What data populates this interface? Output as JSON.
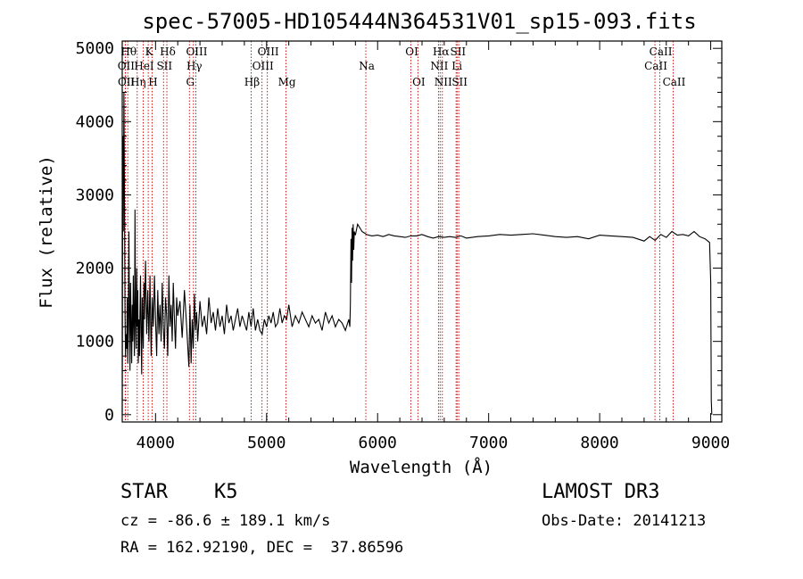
{
  "title": "spec-57005-HD105444N364531V01_sp15-093.fits",
  "footer": {
    "class_label": "STAR",
    "subclass": "K5",
    "survey": "LAMOST DR3",
    "cz": "cz = -86.6 ± 189.1 km/s",
    "obs_date": "Obs-Date: 20141213",
    "radec": "RA = 162.92190, DEC =  37.86596"
  },
  "colors": {
    "line": "#000000",
    "marker": "#cc0000",
    "axis": "#000000"
  },
  "chart_data": {
    "type": "line",
    "title": "spec-57005-HD105444N364531V01_sp15-093.fits",
    "xlabel": "Wavelength (Å)",
    "ylabel": "Flux (relative)",
    "xlim": [
      3700,
      9100
    ],
    "ylim": [
      -100,
      5100
    ],
    "xticks": [
      4000,
      5000,
      6000,
      7000,
      8000,
      9000
    ],
    "yticks": [
      0,
      1000,
      2000,
      3000,
      4000,
      5000
    ],
    "series": [
      {
        "name": "flux",
        "x": [
          3700,
          3705,
          3710,
          3715,
          3720,
          3725,
          3730,
          3735,
          3740,
          3745,
          3750,
          3755,
          3760,
          3765,
          3770,
          3775,
          3780,
          3785,
          3790,
          3795,
          3800,
          3805,
          3810,
          3815,
          3820,
          3825,
          3830,
          3835,
          3840,
          3845,
          3850,
          3855,
          3860,
          3865,
          3870,
          3875,
          3880,
          3885,
          3890,
          3895,
          3900,
          3910,
          3920,
          3930,
          3940,
          3950,
          3960,
          3970,
          3980,
          3990,
          4000,
          4010,
          4020,
          4030,
          4040,
          4050,
          4060,
          4070,
          4080,
          4090,
          4100,
          4110,
          4120,
          4130,
          4140,
          4150,
          4160,
          4170,
          4180,
          4190,
          4200,
          4220,
          4240,
          4260,
          4280,
          4300,
          4310,
          4320,
          4330,
          4340,
          4350,
          4360,
          4370,
          4380,
          4400,
          4420,
          4440,
          4460,
          4480,
          4500,
          4520,
          4540,
          4560,
          4580,
          4600,
          4620,
          4640,
          4660,
          4680,
          4700,
          4720,
          4740,
          4760,
          4780,
          4800,
          4820,
          4840,
          4860,
          4880,
          4900,
          4920,
          4940,
          4960,
          4980,
          5000,
          5020,
          5040,
          5060,
          5080,
          5100,
          5120,
          5140,
          5160,
          5180,
          5200,
          5230,
          5260,
          5290,
          5320,
          5350,
          5380,
          5410,
          5440,
          5470,
          5500,
          5530,
          5560,
          5590,
          5620,
          5650,
          5680,
          5710,
          5740,
          5750,
          5755,
          5760,
          5765,
          5770,
          5775,
          5780,
          5785,
          5790,
          5800,
          5820,
          5840,
          5860,
          5880,
          5900,
          5920,
          5950,
          6000,
          6050,
          6100,
          6150,
          6200,
          6250,
          6300,
          6350,
          6400,
          6450,
          6500,
          6550,
          6600,
          6650,
          6700,
          6750,
          6800,
          6900,
          7000,
          7100,
          7200,
          7300,
          7400,
          7500,
          7600,
          7700,
          7800,
          7900,
          8000,
          8100,
          8200,
          8300,
          8400,
          8450,
          8500,
          8550,
          8600,
          8650,
          8700,
          8750,
          8800,
          8850,
          8900,
          8950,
          8990,
          9000,
          9005,
          9010
        ],
        "y": [
          0,
          3800,
          2500,
          4400,
          3000,
          1400,
          800,
          1100,
          900,
          1600,
          700,
          1200,
          2500,
          1300,
          600,
          1800,
          1200,
          700,
          1500,
          1000,
          1900,
          1200,
          800,
          2800,
          1300,
          900,
          2000,
          1200,
          1700,
          700,
          1300,
          800,
          1400,
          1900,
          1000,
          550,
          1600,
          1200,
          900,
          1800,
          1300,
          2100,
          1100,
          1700,
          1000,
          1900,
          800,
          1600,
          1200,
          1900,
          1300,
          800,
          1700,
          1100,
          1500,
          1000,
          1800,
          1200,
          900,
          1600,
          1350,
          800,
          1900,
          1200,
          1500,
          1000,
          1800,
          1300,
          900,
          1600,
          1350,
          1550,
          1050,
          1700,
          1200,
          650,
          1500,
          700,
          1300,
          900,
          1650,
          1150,
          1400,
          1000,
          1550,
          1200,
          1350,
          1100,
          1600,
          1250,
          1400,
          1150,
          1450,
          1200,
          1350,
          1100,
          1500,
          1250,
          1350,
          1150,
          1300,
          1450,
          1200,
          1350,
          1250,
          1150,
          1400,
          1200,
          1450,
          1150,
          1300,
          1150,
          1100,
          1300,
          1200,
          1350,
          1250,
          1400,
          1200,
          1250,
          1450,
          1250,
          1350,
          1300,
          1500,
          1200,
          1350,
          1250,
          1400,
          1300,
          1200,
          1350,
          1250,
          1300,
          1150,
          1400,
          1250,
          1350,
          1200,
          1300,
          1250,
          1150,
          1300,
          1200,
          1500,
          2400,
          1800,
          2550,
          2100,
          2600,
          2250,
          2500,
          2450,
          2600,
          2550,
          2500,
          2480,
          2460,
          2450,
          2440,
          2450,
          2430,
          2460,
          2440,
          2430,
          2420,
          2440,
          2440,
          2460,
          2430,
          2410,
          2430,
          2420,
          2430,
          2420,
          2440,
          2410,
          2430,
          2440,
          2460,
          2450,
          2460,
          2470,
          2450,
          2430,
          2420,
          2430,
          2400,
          2450,
          2440,
          2430,
          2420,
          2370,
          2430,
          2380,
          2460,
          2420,
          2500,
          2450,
          2460,
          2440,
          2500,
          2430,
          2400,
          2350,
          1800,
          200,
          0
        ]
      }
    ],
    "lines": [
      {
        "name": "OII",
        "wave": 3727,
        "row": 1
      },
      {
        "name": "Hθ",
        "wave": 3750,
        "row": 0
      },
      {
        "name": "OII",
        "wave": 3729,
        "row": 2
      },
      {
        "name": "Hη",
        "wave": 3835,
        "row": 2
      },
      {
        "name": "HeI",
        "wave": 3889,
        "row": 1
      },
      {
        "name": "K",
        "wave": 3934,
        "row": 0
      },
      {
        "name": "H",
        "wave": 3969,
        "row": 2
      },
      {
        "name": "SII",
        "wave": 4072,
        "row": 1
      },
      {
        "name": "Hδ",
        "wave": 4102,
        "row": 0
      },
      {
        "name": "G",
        "wave": 4305,
        "row": 2
      },
      {
        "name": "Hγ",
        "wave": 4341,
        "row": 1
      },
      {
        "name": "OIII",
        "wave": 4363,
        "row": 0
      },
      {
        "name": "Hβ",
        "wave": 4861,
        "row": 2
      },
      {
        "name": "OIII",
        "wave": 4959,
        "row": 1
      },
      {
        "name": "OIII",
        "wave": 5007,
        "row": 0
      },
      {
        "name": "Mg",
        "wave": 5175,
        "row": 2
      },
      {
        "name": "Na",
        "wave": 5894,
        "row": 1
      },
      {
        "name": "OI",
        "wave": 6300,
        "row": 0
      },
      {
        "name": "OI",
        "wave": 6363,
        "row": 2
      },
      {
        "name": "NII",
        "wave": 6548,
        "row": 1
      },
      {
        "name": "Hα",
        "wave": 6563,
        "row": 0
      },
      {
        "name": "NII",
        "wave": 6583,
        "row": 2
      },
      {
        "name": "Li",
        "wave": 6707,
        "row": 1
      },
      {
        "name": "SII",
        "wave": 6716,
        "row": 0
      },
      {
        "name": "SII",
        "wave": 6731,
        "row": 2
      },
      {
        "name": "CaII",
        "wave": 8498,
        "row": 1
      },
      {
        "name": "CaII",
        "wave": 8542,
        "row": 0
      },
      {
        "name": "CaII",
        "wave": 8662,
        "row": 2
      }
    ]
  }
}
